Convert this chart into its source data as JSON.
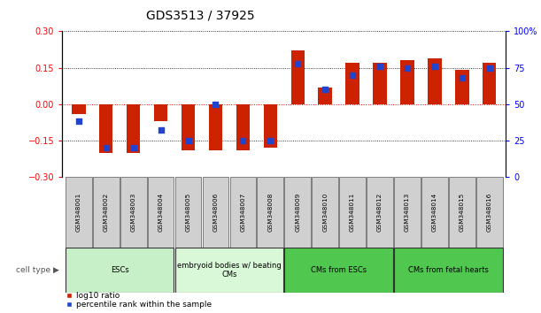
{
  "title": "GDS3513 / 37925",
  "samples": [
    "GSM348001",
    "GSM348002",
    "GSM348003",
    "GSM348004",
    "GSM348005",
    "GSM348006",
    "GSM348007",
    "GSM348008",
    "GSM348009",
    "GSM348010",
    "GSM348011",
    "GSM348012",
    "GSM348013",
    "GSM348014",
    "GSM348015",
    "GSM348016"
  ],
  "log10_ratio": [
    -0.04,
    -0.2,
    -0.2,
    -0.07,
    -0.19,
    -0.19,
    -0.19,
    -0.18,
    0.22,
    0.07,
    0.17,
    0.17,
    0.18,
    0.19,
    0.14,
    0.17
  ],
  "percentile_rank": [
    38,
    20,
    20,
    32,
    25,
    50,
    25,
    25,
    78,
    60,
    70,
    76,
    75,
    76,
    68,
    75
  ],
  "ylim_left": [
    -0.3,
    0.3
  ],
  "ylim_right": [
    0,
    100
  ],
  "yticks_left": [
    -0.3,
    -0.15,
    0,
    0.15,
    0.3
  ],
  "yticks_right": [
    0,
    25,
    50,
    75,
    100
  ],
  "ytick_labels_right": [
    "0",
    "25",
    "50",
    "75",
    "100%"
  ],
  "cell_groups": [
    {
      "label": "ESCs",
      "start": 0,
      "end": 3,
      "color": "#c8f0c8"
    },
    {
      "label": "embryoid bodies w/ beating\nCMs",
      "start": 4,
      "end": 7,
      "color": "#d8f8d8"
    },
    {
      "label": "CMs from ESCs",
      "start": 8,
      "end": 11,
      "color": "#50c850"
    },
    {
      "label": "CMs from fetal hearts",
      "start": 12,
      "end": 15,
      "color": "#50c850"
    }
  ],
  "bar_color": "#cc2200",
  "dot_color": "#2244cc",
  "bg_color": "#ffffff",
  "title_fontsize": 10,
  "tick_fontsize": 7,
  "cell_type_label": "cell type"
}
